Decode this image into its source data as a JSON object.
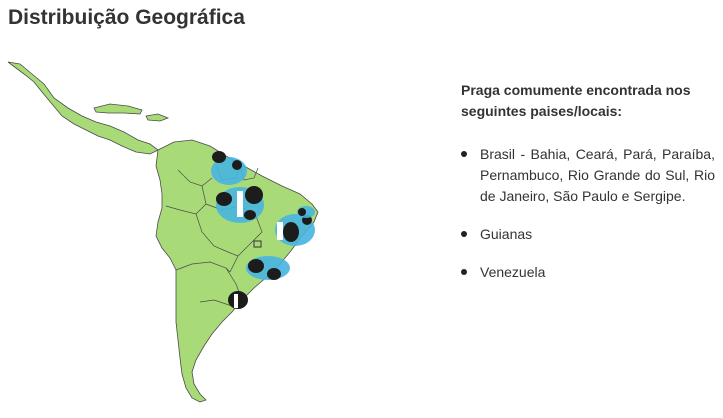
{
  "title": "Distribuição Geográfica",
  "map": {
    "land_color": "#a8db78",
    "border_color": "#4a4a4a",
    "marker_light_color": "#47b4e0",
    "marker_dark_color": "#1c1c1c",
    "hotspot_icon": "pest-occurrence-marker-icon"
  },
  "info": {
    "heading": "Praga comumente encontrada nos seguintes paises/locais:",
    "bullet_icon": "bullet-icon",
    "locations": [
      "Brasil - Bahia, Ceará, Pará, Paraíba, Pernambuco, Rio Grande do Sul, Rio de Janeiro, São Paulo e Sergipe.",
      "Guianas",
      "Venezuela"
    ]
  }
}
